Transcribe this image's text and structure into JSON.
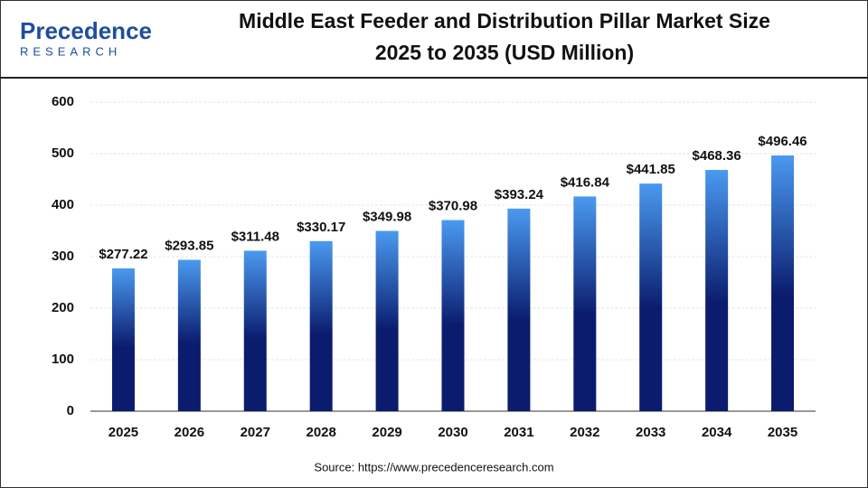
{
  "logo": {
    "name": "Precedence",
    "tagline": "RESEARCH"
  },
  "chart_data": {
    "type": "bar",
    "title": "Middle East Feeder and Distribution Pillar Market Size",
    "subtitle": "2025 to 2035 (USD Million)",
    "categories": [
      "2025",
      "2026",
      "2027",
      "2028",
      "2029",
      "2030",
      "2031",
      "2032",
      "2033",
      "2034",
      "2035"
    ],
    "values": [
      277.22,
      293.85,
      311.48,
      330.17,
      349.98,
      370.98,
      393.24,
      416.84,
      441.85,
      468.36,
      496.46
    ],
    "value_labels": [
      "$277.22",
      "$293.85",
      "$311.48",
      "$330.17",
      "$349.98",
      "$370.98",
      "$393.24",
      "$416.84",
      "$441.85",
      "$468.36",
      "$496.46"
    ],
    "color": [
      "#4a9af0",
      "#0b1c6e"
    ],
    "ylim": [
      0,
      600
    ],
    "yticks": [
      0,
      100,
      200,
      300,
      400,
      500,
      600
    ],
    "grid": true,
    "source": "Source: https://www.precedenceresearch.com"
  }
}
